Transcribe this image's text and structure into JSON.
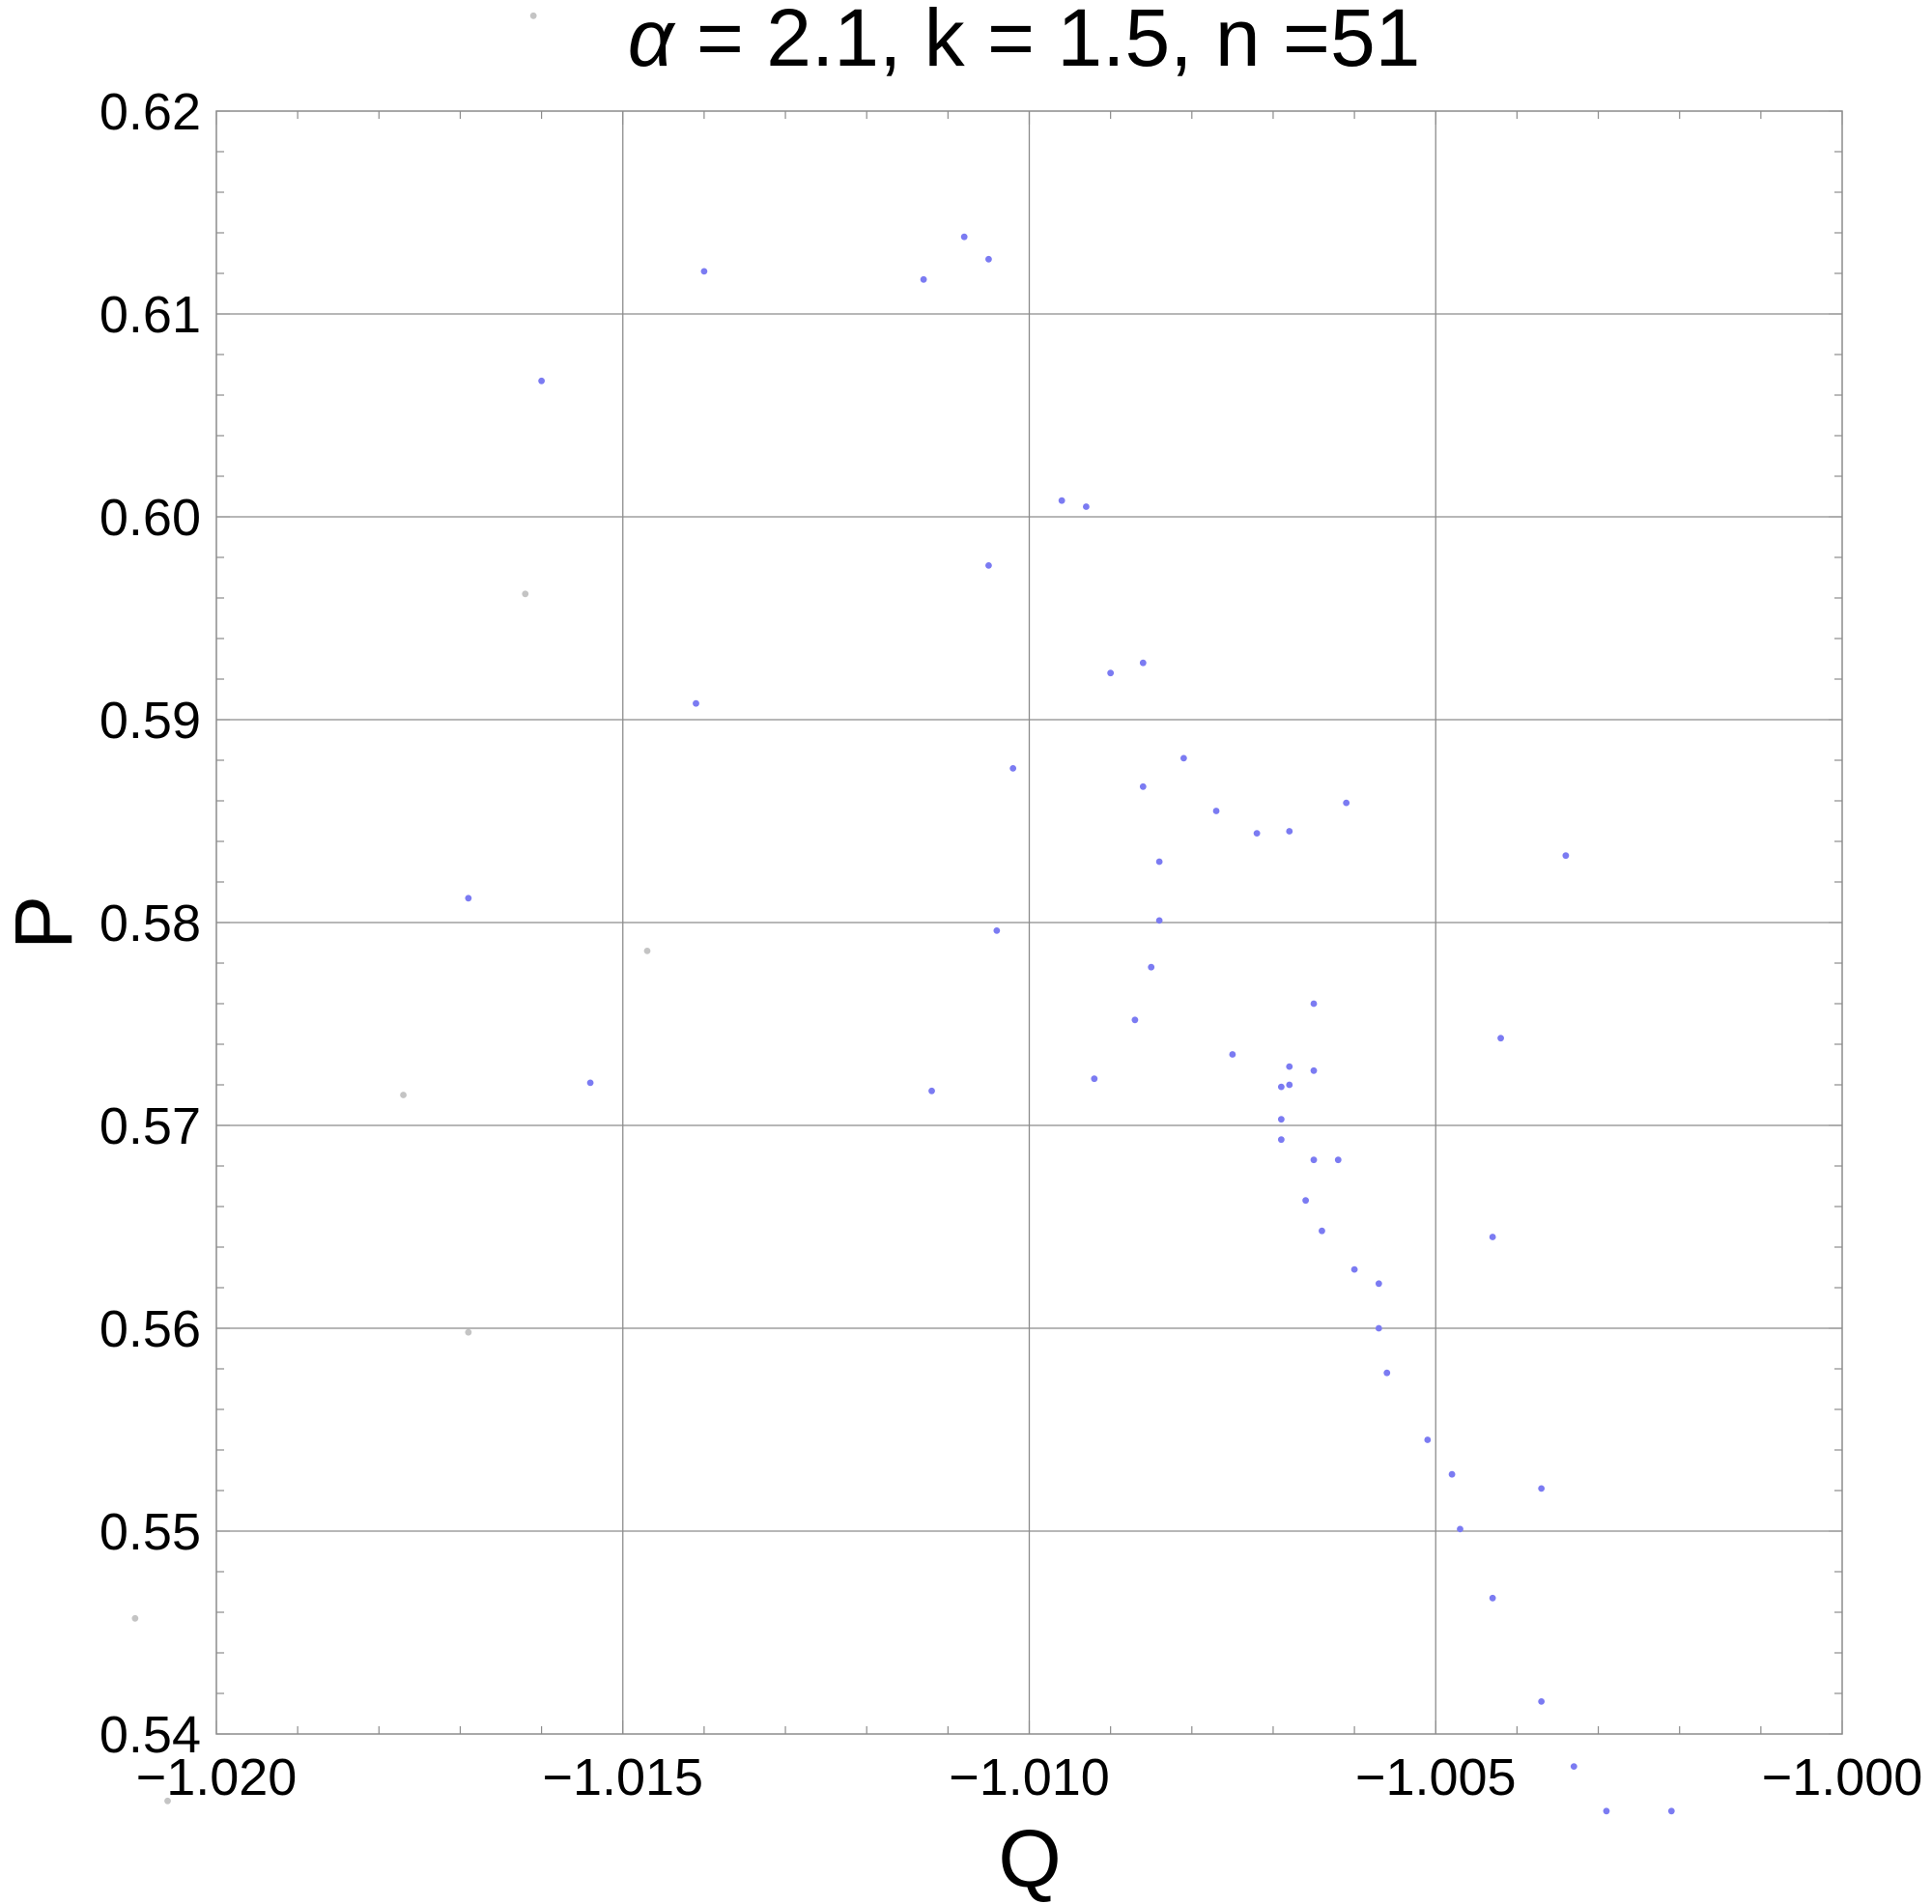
{
  "chart_data": {
    "type": "scatter",
    "title": {
      "symbol": "α",
      "rest": " = 2.1, k = 1.5, n =51"
    },
    "xlabel": "Q",
    "ylabel": "P",
    "xlim": [
      -1.02,
      -1.0
    ],
    "ylim": [
      0.54,
      0.62
    ],
    "xticks": [
      -1.02,
      -1.015,
      -1.01,
      -1.005,
      -1.0
    ],
    "xtick_labels": [
      "−1.020",
      "−1.015",
      "−1.010",
      "−1.005",
      "−1.000"
    ],
    "yticks": [
      0.54,
      0.55,
      0.56,
      0.57,
      0.58,
      0.59,
      0.6,
      0.61,
      0.62
    ],
    "ytick_labels": [
      "0.54",
      "0.55",
      "0.56",
      "0.57",
      "0.58",
      "0.59",
      "0.60",
      "0.61",
      "0.62"
    ],
    "grid": true,
    "colors": {
      "primary": "#7b7bf2",
      "faded": "#c4c4c4",
      "grid": "#8c8c8c",
      "frame": "#8c8c8c"
    },
    "series": [
      {
        "style": "primary",
        "points": [
          [
            -1.014,
            0.6121
          ],
          [
            -1.0113,
            0.6117
          ],
          [
            -1.0108,
            0.6138
          ],
          [
            -1.0105,
            0.6127
          ],
          [
            -1.016,
            0.6067
          ],
          [
            -1.0096,
            0.6008
          ],
          [
            -1.0093,
            0.6005
          ],
          [
            -1.0105,
            0.5976
          ],
          [
            -1.0141,
            0.5908
          ],
          [
            -1.009,
            0.5923
          ],
          [
            -1.0086,
            0.5928
          ],
          [
            -1.0102,
            0.5876
          ],
          [
            -1.0081,
            0.5881
          ],
          [
            -1.0086,
            0.5867
          ],
          [
            -1.0077,
            0.5855
          ],
          [
            -1.0072,
            0.5844
          ],
          [
            -1.0068,
            0.5845
          ],
          [
            -1.0061,
            0.5859
          ],
          [
            -1.0034,
            0.5833
          ],
          [
            -1.0084,
            0.583
          ],
          [
            -1.0169,
            0.5812
          ],
          [
            -1.0084,
            0.5801
          ],
          [
            -1.0104,
            0.5796
          ],
          [
            -1.0085,
            0.5778
          ],
          [
            -1.0065,
            0.576
          ],
          [
            -1.0087,
            0.5752
          ],
          [
            -1.0042,
            0.5743
          ],
          [
            -1.0075,
            0.5735
          ],
          [
            -1.0068,
            0.5729
          ],
          [
            -1.0065,
            0.5727
          ],
          [
            -1.0092,
            0.5723
          ],
          [
            -1.0154,
            0.5721
          ],
          [
            -1.0068,
            0.572
          ],
          [
            -1.0069,
            0.5719
          ],
          [
            -1.0112,
            0.5717
          ],
          [
            -1.0069,
            0.5703
          ],
          [
            -1.0069,
            0.5693
          ],
          [
            -1.0065,
            0.5683
          ],
          [
            -1.0062,
            0.5683
          ],
          [
            -1.0066,
            0.5663
          ],
          [
            -1.0064,
            0.5648
          ],
          [
            -1.0043,
            0.5645
          ],
          [
            -1.006,
            0.5629
          ],
          [
            -1.0057,
            0.5622
          ],
          [
            -1.0057,
            0.56
          ],
          [
            -1.0056,
            0.5578
          ],
          [
            -1.0051,
            0.5545
          ],
          [
            -1.0048,
            0.5528
          ],
          [
            -1.0037,
            0.5521
          ],
          [
            -1.0047,
            0.5501
          ],
          [
            -1.0043,
            0.5467
          ],
          [
            -1.0037,
            0.5416
          ],
          [
            -1.0033,
            0.5384
          ],
          [
            -1.0029,
            0.5362
          ],
          [
            -1.0021,
            0.5362
          ]
        ]
      },
      {
        "style": "faded",
        "points": [
          [
            -1.0161,
            0.6247
          ],
          [
            -1.0162,
            0.5962
          ],
          [
            -1.0147,
            0.5786
          ],
          [
            -1.0177,
            0.5715
          ],
          [
            -1.0169,
            0.5598
          ],
          [
            -1.021,
            0.5457
          ],
          [
            -1.0206,
            0.5367
          ]
        ]
      }
    ]
  }
}
